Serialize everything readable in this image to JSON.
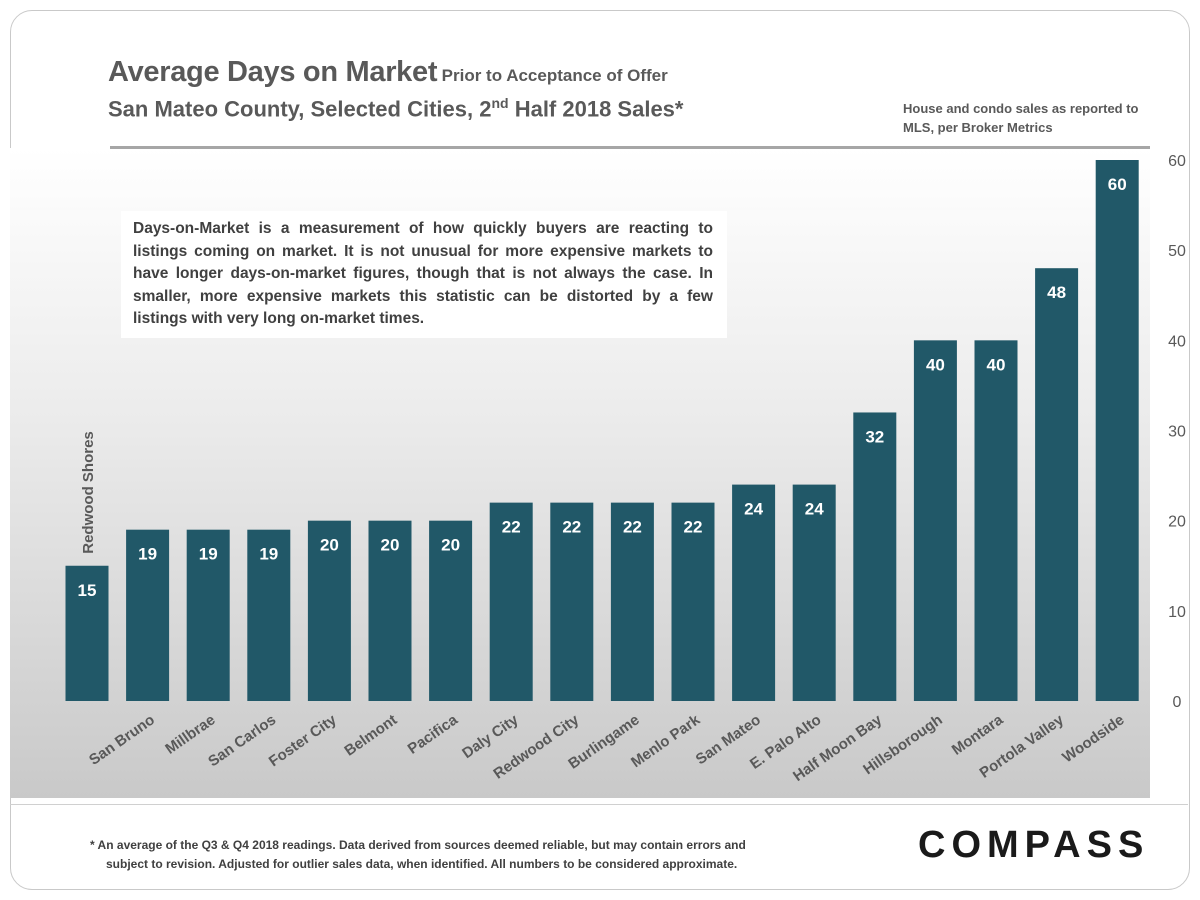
{
  "header": {
    "title_main": "Average Days on Market",
    "title_suffix": "Prior to Acceptance of Offer",
    "subtitle_pre": "San Mateo County, Selected Cities, 2",
    "subtitle_sup": "nd",
    "subtitle_post": " Half 2018 Sales*",
    "source_note": "House and condo sales as reported to MLS, per Broker Metrics"
  },
  "annotation": "Days-on-Market is a measurement of how quickly buyers are reacting to listings coming on market. It is not unusual for more expensive markets to have longer days-on-market figures, though that is not always the case. In smaller, more expensive markets this statistic can be distorted by a few listings with very long on-market times.",
  "footnote": {
    "line1": "* An average of the Q3 & Q4 2018 readings. Data derived from sources deemed reliable, but may contain errors and",
    "line2": "subject to revision. Adjusted for outlier sales data, when identified. All numbers to be considered approximate."
  },
  "logo": "COMPASS",
  "colors": {
    "bar": "#215868",
    "text": "#595959"
  },
  "chart_data": {
    "type": "bar",
    "title": "Average Days on Market",
    "categories": [
      "Redwood Shores",
      "San Bruno",
      "Millbrae",
      "San Carlos",
      "Foster City",
      "Belmont",
      "Pacifica",
      "Daly City",
      "Redwood City",
      "Burlingame",
      "Menlo Park",
      "San Mateo",
      "E. Palo Alto",
      "Half Moon Bay",
      "Hillsborough",
      "Montara",
      "Portola Valley",
      "Woodside"
    ],
    "values": [
      15,
      19,
      19,
      19,
      20,
      20,
      20,
      22,
      22,
      22,
      22,
      24,
      24,
      32,
      40,
      40,
      48,
      60
    ],
    "y_ticks": [
      0,
      10,
      20,
      30,
      40,
      50,
      60
    ],
    "ylim": [
      0,
      60
    ],
    "y_axis_position": "right",
    "grid": false,
    "legend": "none",
    "data_labels": true
  }
}
